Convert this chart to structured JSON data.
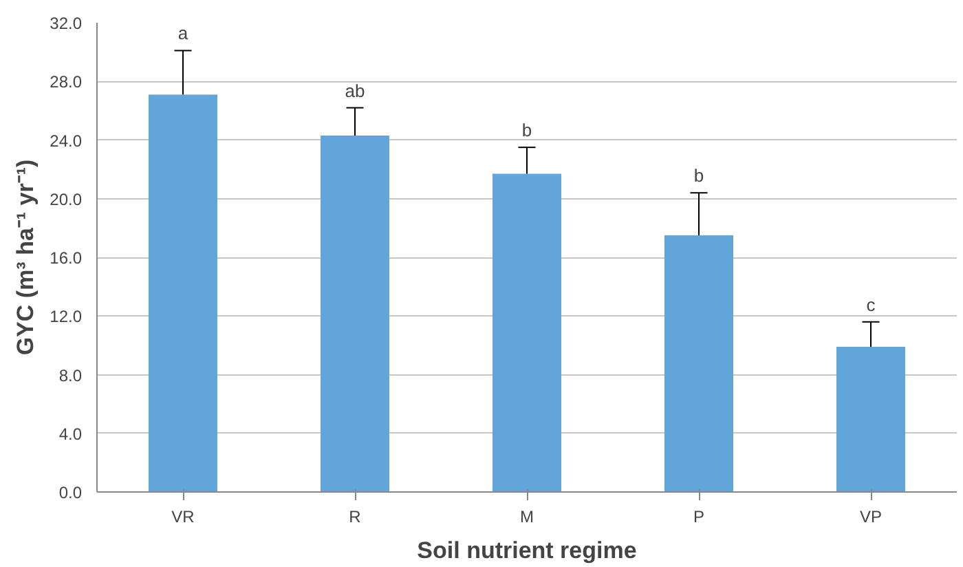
{
  "chart_data": {
    "type": "bar",
    "xlabel": "Soil nutrient regime",
    "ylabel": "GYC (m³ ha⁻¹ yr⁻¹)",
    "categories": [
      "VR",
      "R",
      "M",
      "P",
      "VP"
    ],
    "values": [
      27.1,
      24.3,
      21.7,
      17.5,
      9.9
    ],
    "errors": [
      [
        27.1,
        30.1
      ],
      [
        24.3,
        26.2
      ],
      [
        21.7,
        23.5
      ],
      [
        17.5,
        20.4
      ],
      [
        9.9,
        11.6
      ]
    ],
    "color": "#62a6d9",
    "ylim": [
      0,
      32
    ],
    "yticks": [
      {
        "value": 0,
        "label": "0.0"
      },
      {
        "value": 4,
        "label": "4.0"
      },
      {
        "value": 8,
        "label": "8.0"
      },
      {
        "value": 12,
        "label": "12.0"
      },
      {
        "value": 16,
        "label": "16.0"
      },
      {
        "value": 20,
        "label": "20.0"
      },
      {
        "value": 24,
        "label": "24.0"
      },
      {
        "value": 28,
        "label": "28.0"
      },
      {
        "value": 32,
        "label": "32.0"
      }
    ],
    "grid": "y",
    "annotations": [
      {
        "text": "a",
        "x": "VR",
        "y": 30.1
      },
      {
        "text": "ab",
        "x": "R",
        "y": 26.2
      },
      {
        "text": "b",
        "x": "M",
        "y": 23.5
      },
      {
        "text": "b",
        "x": "P",
        "y": 20.4
      },
      {
        "text": "c",
        "x": "VP",
        "y": 11.6
      }
    ]
  }
}
